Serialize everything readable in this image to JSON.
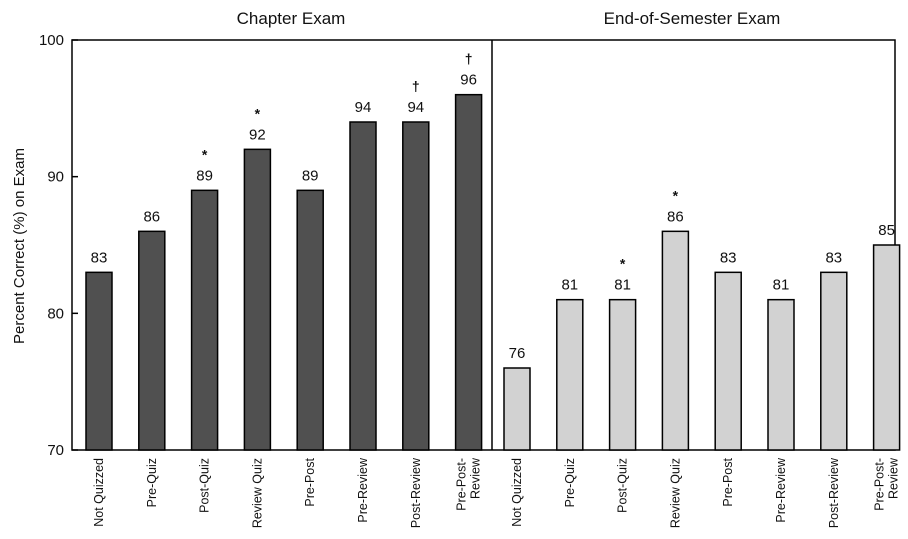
{
  "chart_data": {
    "type": "bar",
    "ylabel": "Percent Correct (%) on Exam",
    "ylim": [
      70,
      100
    ],
    "yticks": [
      70,
      80,
      90,
      100
    ],
    "grid": false,
    "colors": {
      "chapter": "#505050",
      "semester": "#d2d2d2",
      "edge": "#000000"
    },
    "panels": [
      {
        "title": "Chapter Exam",
        "categories": [
          "Not Quizzed",
          "Pre-Quiz",
          "Post-Quiz",
          "Review Quiz",
          "Pre-Post",
          "Pre-Review",
          "Post-Review",
          "Pre-Post-|Review"
        ],
        "values": [
          83,
          86,
          89,
          92,
          89,
          94,
          94,
          96
        ],
        "markers": [
          "",
          "",
          "*",
          "*",
          "",
          "",
          "†",
          "†"
        ]
      },
      {
        "title": "End-of-Semester Exam",
        "categories": [
          "Not Quizzed",
          "Pre-Quiz",
          "Post-Quiz",
          "Review Quiz",
          "Pre-Post",
          "Pre-Review",
          "Post-Review",
          "Pre-Post-|Review"
        ],
        "values": [
          76,
          81,
          81,
          86,
          83,
          81,
          83,
          85
        ],
        "markers": [
          "",
          "",
          "*",
          "*",
          "",
          "",
          "",
          ""
        ]
      }
    ]
  }
}
